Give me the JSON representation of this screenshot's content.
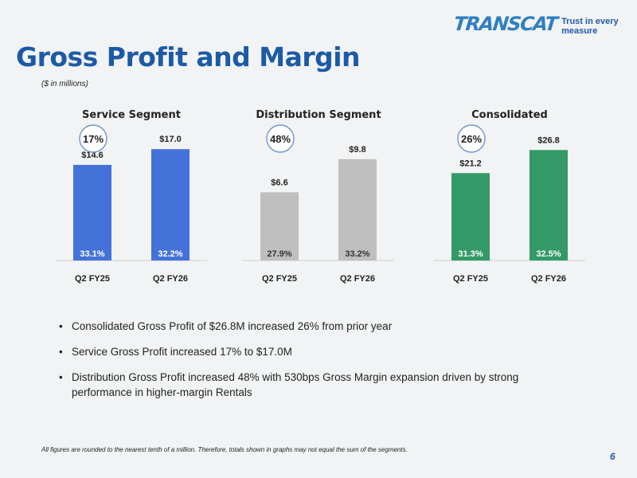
{
  "logo": {
    "wordmark": "TRANSCAT",
    "tagline": "Trust in every measure"
  },
  "page_title": "Gross Profit and Margin",
  "subtitle": "($ in millions)",
  "chart_data": [
    {
      "type": "bar",
      "title": "Service Segment",
      "categories": [
        "Q2 FY25",
        "Q2 FY26"
      ],
      "values": [
        14.6,
        17.0
      ],
      "value_labels": [
        "$14.6",
        "$17.0"
      ],
      "margin_labels": [
        "33.1%",
        "32.2%"
      ],
      "growth_badge": "17%",
      "ylim": [
        0,
        18
      ],
      "color": "#4472d9"
    },
    {
      "type": "bar",
      "title": "Distribution Segment",
      "categories": [
        "Q2 FY25",
        "Q2 FY26"
      ],
      "values": [
        6.6,
        9.8
      ],
      "value_labels": [
        "$6.6",
        "$9.8"
      ],
      "margin_labels": [
        "27.9%",
        "33.2%"
      ],
      "growth_badge": "48%",
      "ylim": [
        0,
        11.4
      ],
      "color": "#bfbfbf"
    },
    {
      "type": "bar",
      "title": "Consolidated",
      "categories": [
        "Q2 FY25",
        "Q2 FY26"
      ],
      "values": [
        21.2,
        26.8
      ],
      "value_labels": [
        "$21.2",
        "$26.8"
      ],
      "margin_labels": [
        "31.3%",
        "32.5%"
      ],
      "growth_badge": "26%",
      "ylim": [
        0,
        28.6
      ],
      "color": "#339966"
    }
  ],
  "bullets": [
    "Consolidated Gross Profit of $26.8M increased 26% from prior year",
    "Service Gross Profit increased 17% to $17.0M",
    "Distribution Gross Profit increased 48% with 530bps Gross Margin expansion driven by strong performance in higher-margin Rentals"
  ],
  "footnote": "All figures are rounded to the nearest tenth of a million. Therefore, totals shown in graphs may not equal the sum of the segments.",
  "page_number": "6"
}
